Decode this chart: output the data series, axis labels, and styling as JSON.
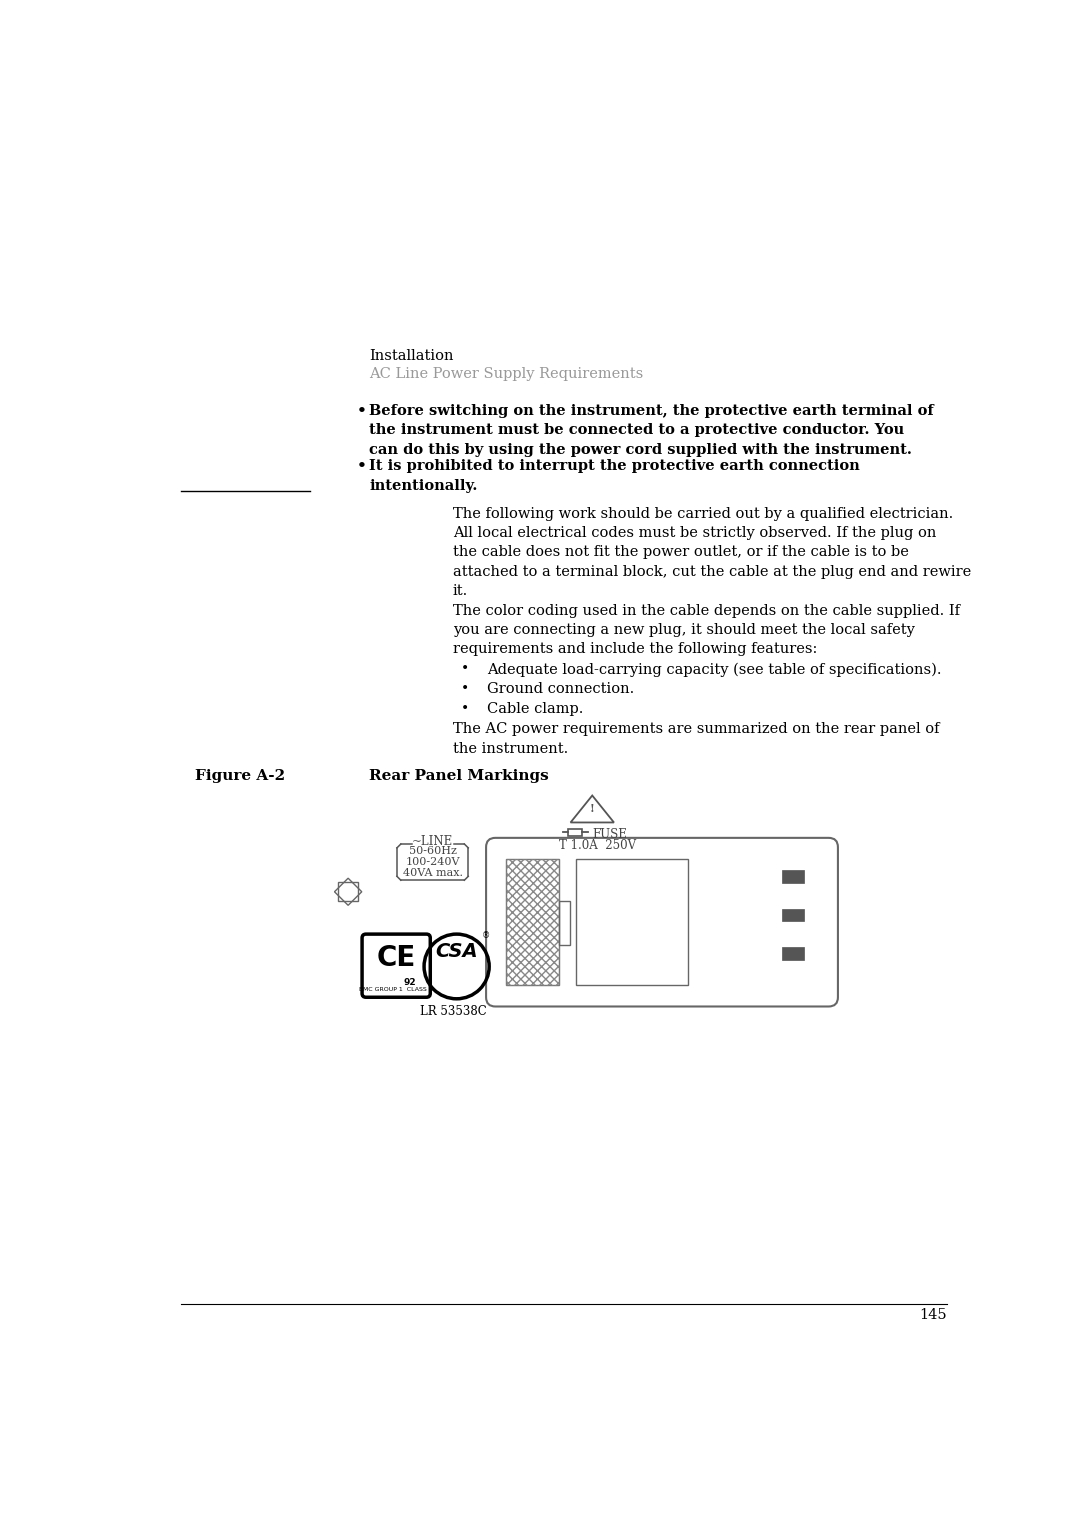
{
  "bg_color": "#ffffff",
  "text_color": "#000000",
  "header_line1": "Installation",
  "header_line2": "AC Line Power Supply Requirements",
  "header_line2_color": "#999999",
  "bullet1": "Before switching on the instrument, the protective earth terminal of\nthe instrument must be connected to a protective conductor. You\ncan do this by using the power cord supplied with the instrument.",
  "bullet2": "It is prohibited to interrupt the protective earth connection\nintentionally.",
  "para1": "The following work should be carried out by a qualified electrician.\nAll local electrical codes must be strictly observed. If the plug on\nthe cable does not fit the power outlet, or if the cable is to be\nattached to a terminal block, cut the cable at the plug end and rewire\nit.",
  "para2": "The color coding used in the cable depends on the cable supplied. If\nyou are connecting a new plug, it should meet the local safety\nrequirements and include the following features:",
  "sub_bullet1": "Adequate load-carrying capacity (see table of specifications).",
  "sub_bullet2": "Ground connection.",
  "sub_bullet3": "Cable clamp.",
  "para3": "The AC power requirements are summarized on the rear panel of\nthe instrument.",
  "figure_label": "Figure A-2",
  "figure_title": "Rear Panel Markings",
  "line_spec1": "50-60Hz",
  "line_spec2": "100-240V",
  "line_spec3": "40VA max.",
  "fuse_label": "FUSE",
  "fuse_spec": "T 1.0A  250V",
  "csa_label": "LR 53538C",
  "page_number": "145",
  "edge_color": "#666666"
}
